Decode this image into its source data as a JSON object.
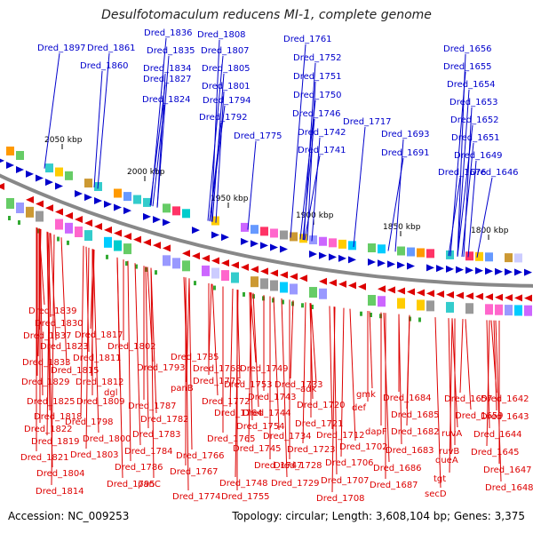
{
  "header": {
    "title": "Desulfotomaculum reducens MI-1, complete genome"
  },
  "footer": {
    "accession": "Accession: NC_009253",
    "summary": "Topology: circular; Length: 3,608,104 bp; Genes: 3,375"
  },
  "colors": {
    "forward": "#0000cc",
    "reverse": "#dd0000",
    "backbone": "#888888",
    "tick_text": "#000000"
  },
  "map": {
    "ticks": [
      "2050 kbp",
      "2000 kbp",
      "1950 kbp",
      "1900 kbp",
      "1850 kbp",
      "1800 kbp"
    ],
    "forward_genes": [
      "Dred_1897",
      "Dred_1861",
      "Dred_1860",
      "Dred_1836",
      "Dred_1835",
      "Dred_1834",
      "Dred_1827",
      "Dred_1824",
      "Dred_1808",
      "Dred_1807",
      "Dred_1805",
      "Dred_1801",
      "Dred_1794",
      "Dred_1792",
      "Dred_1775",
      "Dred_1761",
      "Dred_1752",
      "Dred_1751",
      "Dred_1750",
      "Dred_1746",
      "Dred_1742",
      "Dred_1741",
      "Dred_1717",
      "Dred_1693",
      "Dred_1691",
      "Dred_1676",
      "Dred_1656",
      "Dred_1655",
      "Dred_1654",
      "Dred_1653",
      "Dred_1652",
      "Dred_1651",
      "Dred_1649",
      "Dred_1646"
    ],
    "reverse_genes": [
      "Dred_1839",
      "Dred_1830",
      "Dred_1837",
      "Dred_1817",
      "Dred_1823",
      "Dred_1811",
      "Dred_1802",
      "Dred_1833",
      "Dred_1815",
      "Dred_1785",
      "Dred_1829",
      "Dred_1812",
      "Dred_1793",
      "dgl",
      "Dred_1776",
      "Dred_1768",
      "Dred_1749",
      "Dred_1825",
      "Dred_1809",
      "panB",
      "Dred_1772",
      "Dred_1753",
      "Dred_1743",
      "Dred_1733",
      "adk",
      "gmk",
      "Dred_1684",
      "Dred_1657",
      "Dred_1642",
      "Dred_1818",
      "Dred_1787",
      "Dred_1764",
      "Dred_1744",
      "Dred_1720",
      "def",
      "Dred_1685",
      "Dred_1659",
      "Dred_1643",
      "Dred_1822",
      "Dred_1798",
      "Dred_1782",
      "Dred_1754",
      "Dred_1721",
      "Dred_1819",
      "Dred_1800",
      "Dred_1783",
      "Dred_1765",
      "Dred_1745",
      "Dred_1734",
      "Dred_1712",
      "dapF",
      "Dred_1682",
      "ruvA",
      "Dred_1644",
      "Dred_1821",
      "Dred_1803",
      "Dred_1784",
      "Dred_1766",
      "Dred_1747",
      "Dred_1723",
      "Dred_1702",
      "Dred_1683",
      "ruvB",
      "Dred_1645",
      "Dred_1804",
      "Dred_1786",
      "Dred_1728",
      "Dred_1706",
      "Dred_1686",
      "queA",
      "Dred_1647",
      "Dred_1814",
      "Dred_1795",
      "panC",
      "Dred_1767",
      "Dred_1748",
      "Dred_1729",
      "Dred_1707",
      "Dred_1687",
      "tgt",
      "Dred_1648",
      "Dred_1774",
      "Dred_1755",
      "Dred_1708",
      "secD"
    ]
  }
}
